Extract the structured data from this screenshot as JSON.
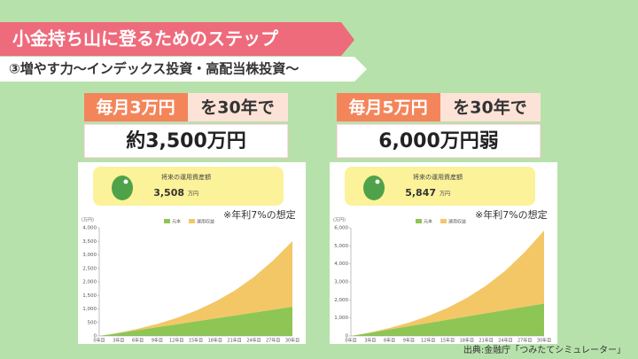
{
  "header": {
    "title": "小金持ち山に登るためのステップ",
    "subtitle": "③増やす力〜インデックス投資・高配当株投資〜"
  },
  "panels": [
    {
      "highlight": "毎月3万円",
      "rest": "を30年で",
      "result": "約3,500万円"
    },
    {
      "highlight": "毎月5万円",
      "rest": "を30年で",
      "result": "6,000万円弱"
    }
  ],
  "chart_data": [
    {
      "type": "area",
      "stacked": true,
      "summary_title": "将来の運用資産額",
      "summary_value": "3,508",
      "summary_unit": "万円",
      "annotation": "※年利7%の想定",
      "y_unit_label": "(万円)",
      "categories": [
        "0年目",
        "3年目",
        "6年目",
        "9年目",
        "12年目",
        "15年目",
        "18年目",
        "21年目",
        "24年目",
        "27年目",
        "30年目"
      ],
      "series": [
        {
          "name": "元本",
          "color": "#8dc655",
          "values": [
            0,
            108,
            216,
            324,
            432,
            540,
            648,
            756,
            864,
            972,
            1080
          ]
        },
        {
          "name": "運用収益",
          "color": "#f3c766",
          "values": [
            0,
            11,
            49,
            120,
            232,
            393,
            617,
            917,
            1311,
            1820,
            2428
          ]
        }
      ],
      "ylim": [
        0,
        4000
      ],
      "yticks": [
        0,
        {
          "value": 500,
          "label": "500"
        },
        {
          "value": 1000,
          "label": "1,000"
        },
        {
          "value": 1500,
          "label": "1,500"
        },
        {
          "value": 2000,
          "label": "2,000"
        },
        {
          "value": 2500,
          "label": "2,500"
        },
        {
          "value": 3000,
          "label": "3,000"
        },
        {
          "value": 3500,
          "label": "3,500"
        },
        {
          "value": 4000,
          "label": "4,000"
        }
      ]
    },
    {
      "type": "area",
      "stacked": true,
      "summary_title": "将来の運用資産額",
      "summary_value": "5,847",
      "summary_unit": "万円",
      "annotation": "※年利7%の想定",
      "y_unit_label": "(万円)",
      "categories": [
        "0年目",
        "3年目",
        "6年目",
        "9年目",
        "12年目",
        "15年目",
        "18年目",
        "21年目",
        "24年目",
        "27年目",
        "30年目"
      ],
      "series": [
        {
          "name": "元本",
          "color": "#8dc655",
          "values": [
            0,
            180,
            360,
            540,
            720,
            900,
            1080,
            1260,
            1440,
            1620,
            1800
          ]
        },
        {
          "name": "運用収益",
          "color": "#f3c766",
          "values": [
            0,
            18,
            82,
            200,
            387,
            655,
            1028,
            1528,
            2185,
            3033,
            4047
          ]
        }
      ],
      "ylim": [
        0,
        6000
      ],
      "yticks": [
        0,
        {
          "value": 1000,
          "label": "1,000"
        },
        {
          "value": 2000,
          "label": "2,000"
        },
        {
          "value": 3000,
          "label": "3,000"
        },
        {
          "value": 4000,
          "label": "4,000"
        },
        {
          "value": 5000,
          "label": "5,000"
        },
        {
          "value": 6000,
          "label": "6,000"
        }
      ]
    }
  ],
  "source": "出典:金融庁「つみたてシミュレーター」"
}
